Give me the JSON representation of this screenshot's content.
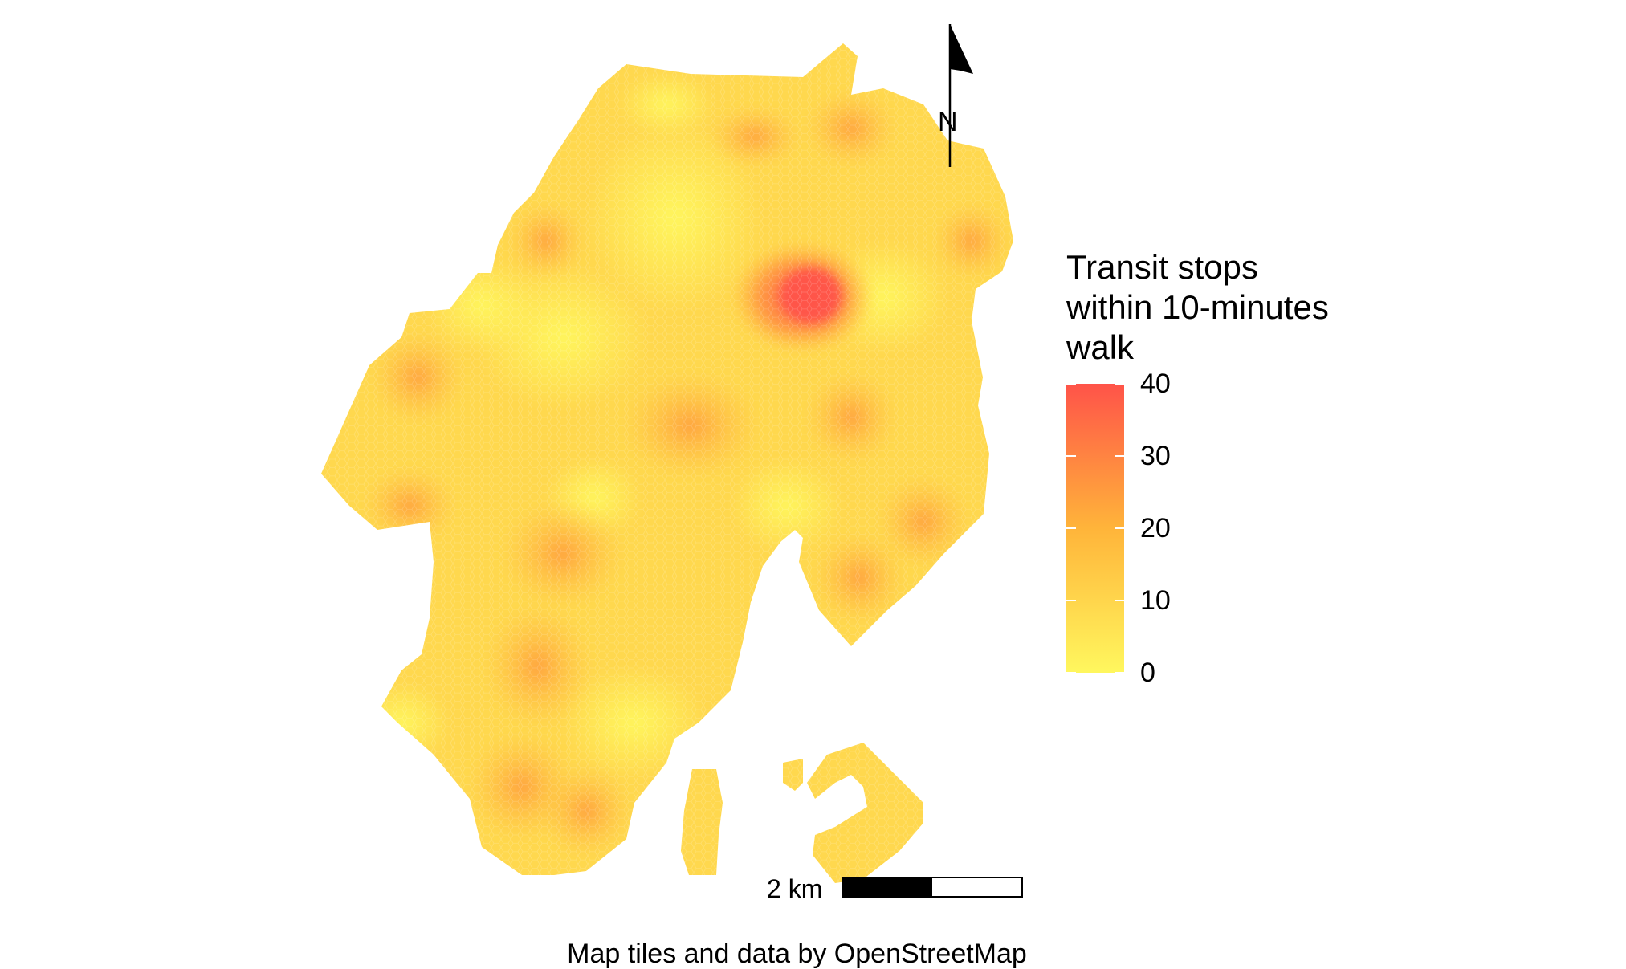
{
  "map": {
    "attribution": "Map tiles and data by OpenStreetMap",
    "north_label": "N",
    "scale": {
      "label": "2 km",
      "segments": [
        "#000000",
        "#ffffff"
      ]
    }
  },
  "legend": {
    "title_lines": [
      "Transit stops",
      "within 10-minutes",
      "walk"
    ],
    "ticks": [
      "40",
      "30",
      "20",
      "10",
      "0"
    ],
    "tick_values": [
      40,
      30,
      20,
      10,
      0
    ],
    "range": [
      0,
      40
    ],
    "colors": {
      "low": "#FFF75E",
      "mid": "#FFB43A",
      "high": "#FF5349"
    }
  },
  "icons": {
    "north_arrow": "north-arrow-icon"
  }
}
